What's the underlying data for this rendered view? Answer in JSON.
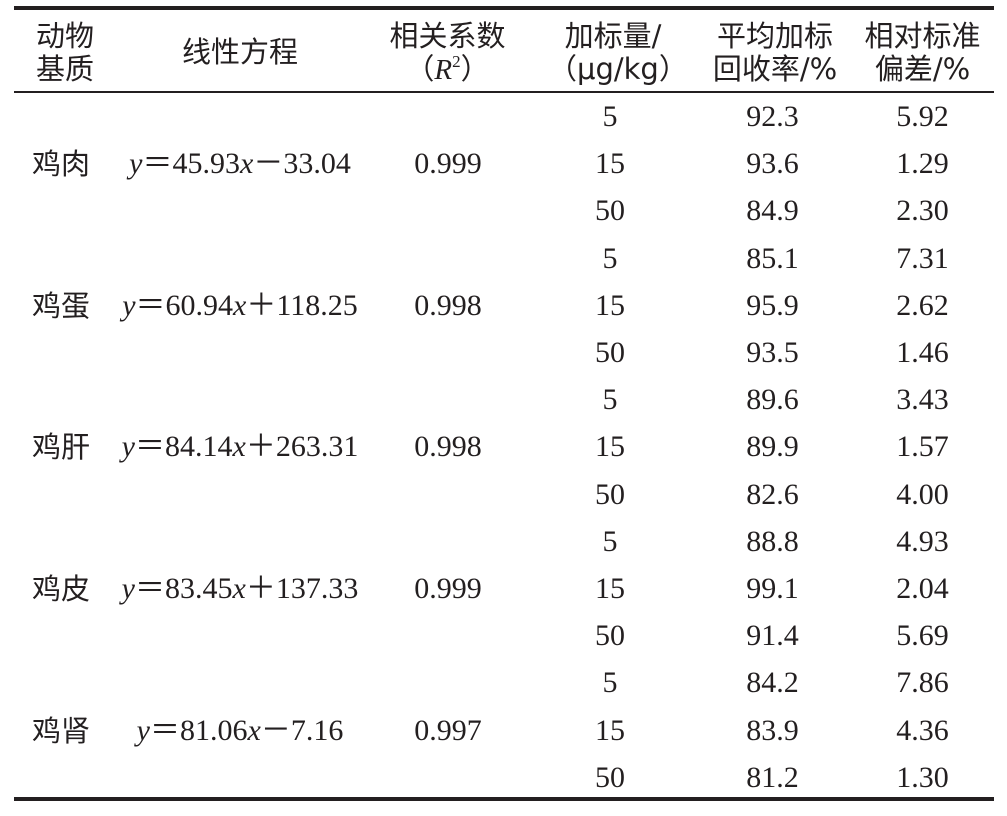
{
  "header": {
    "col_matrix": [
      "动物",
      "基质"
    ],
    "col_equation": "线性方程",
    "col_r2": {
      "line1": "相关系数",
      "line2_open": "（",
      "line2_var": "R",
      "line2_sup": "2",
      "line2_close": "）"
    },
    "col_spike": [
      "加标量/",
      "（μg/kg）"
    ],
    "col_recovery": [
      "平均加标",
      "回收率/%"
    ],
    "col_rsd": [
      "相对标准",
      "偏差/%"
    ]
  },
  "groups": [
    {
      "matrix": "鸡肉",
      "eq_y": "y",
      "eq_eq": "＝",
      "eq_coef": "45.93",
      "eq_x": "x",
      "eq_rest": "－33.04",
      "r2": "0.999",
      "rows": [
        {
          "spike": "5",
          "recovery": "92.3",
          "rsd": "5.92"
        },
        {
          "spike": "15",
          "recovery": "93.6",
          "rsd": "1.29"
        },
        {
          "spike": "50",
          "recovery": "84.9",
          "rsd": "2.30"
        }
      ]
    },
    {
      "matrix": "鸡蛋",
      "eq_y": "y",
      "eq_eq": "＝",
      "eq_coef": "60.94",
      "eq_x": "x",
      "eq_rest": "＋118.25",
      "r2": "0.998",
      "rows": [
        {
          "spike": "5",
          "recovery": "85.1",
          "rsd": "7.31"
        },
        {
          "spike": "15",
          "recovery": "95.9",
          "rsd": "2.62"
        },
        {
          "spike": "50",
          "recovery": "93.5",
          "rsd": "1.46"
        }
      ]
    },
    {
      "matrix": "鸡肝",
      "eq_y": "y",
      "eq_eq": "＝",
      "eq_coef": "84.14",
      "eq_x": "x",
      "eq_rest": "＋263.31",
      "r2": "0.998",
      "rows": [
        {
          "spike": "5",
          "recovery": "89.6",
          "rsd": "3.43"
        },
        {
          "spike": "15",
          "recovery": "89.9",
          "rsd": "1.57"
        },
        {
          "spike": "50",
          "recovery": "82.6",
          "rsd": "4.00"
        }
      ]
    },
    {
      "matrix": "鸡皮",
      "eq_y": "y",
      "eq_eq": "＝",
      "eq_coef": "83.45",
      "eq_x": "x",
      "eq_rest": "＋137.33",
      "r2": "0.999",
      "rows": [
        {
          "spike": "5",
          "recovery": "88.8",
          "rsd": "4.93"
        },
        {
          "spike": "15",
          "recovery": "99.1",
          "rsd": "2.04"
        },
        {
          "spike": "50",
          "recovery": "91.4",
          "rsd": "5.69"
        }
      ]
    },
    {
      "matrix": "鸡肾",
      "eq_y": "y",
      "eq_eq": "＝",
      "eq_coef": "81.06",
      "eq_x": "x",
      "eq_rest": "－7.16",
      "r2": "0.997",
      "rows": [
        {
          "spike": "5",
          "recovery": "84.2",
          "rsd": "7.86"
        },
        {
          "spike": "15",
          "recovery": "83.9",
          "rsd": "4.36"
        },
        {
          "spike": "50",
          "recovery": "81.2",
          "rsd": "1.30"
        }
      ]
    }
  ]
}
